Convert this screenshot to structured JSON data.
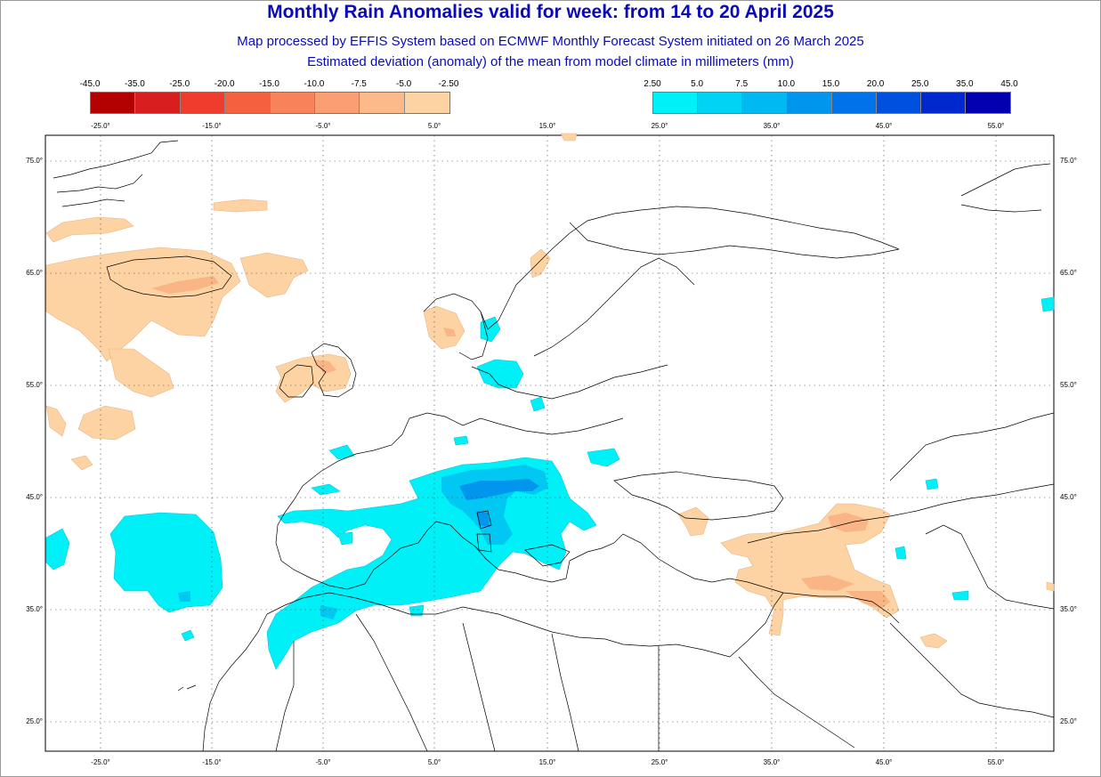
{
  "title": "Monthly Rain Anomalies valid for week: from 14 to 20 April 2025",
  "subtitle1": "Map processed by EFFIS System based on ECMWF Monthly Forecast System initiated on 26 March 2025",
  "subtitle2": "Estimated deviation (anomaly) of the mean from model climate in millimeters (mm)",
  "legend_negative": {
    "ticks": [
      "-45.0",
      "-35.0",
      "-25.0",
      "-20.0",
      "-15.0",
      "-10.0",
      "-7.5",
      "-5.0",
      "-2.50"
    ],
    "colors": [
      "#b30000",
      "#d81e1e",
      "#f03c2c",
      "#f4613f",
      "#f8825a",
      "#fa9e73",
      "#fcb98a",
      "#fdd3a3"
    ]
  },
  "legend_positive": {
    "ticks": [
      "2.50",
      "5.0",
      "7.5",
      "10.0",
      "15.0",
      "20.0",
      "25.0",
      "35.0",
      "45.0"
    ],
    "colors": [
      "#00f0f8",
      "#00d4f5",
      "#00b8f2",
      "#0096ee",
      "#0072ea",
      "#0050e0",
      "#0028cf",
      "#0000b0"
    ]
  },
  "axes": {
    "lon_labels": [
      "-25.0°",
      "-15.0°",
      "-5.0°",
      "5.0°",
      "15.0°",
      "25.0°",
      "35.0°",
      "45.0°",
      "55.0°"
    ],
    "lat_labels": [
      "75.0°",
      "65.0°",
      "55.0°",
      "45.0°",
      "35.0°",
      "25.0°"
    ]
  }
}
